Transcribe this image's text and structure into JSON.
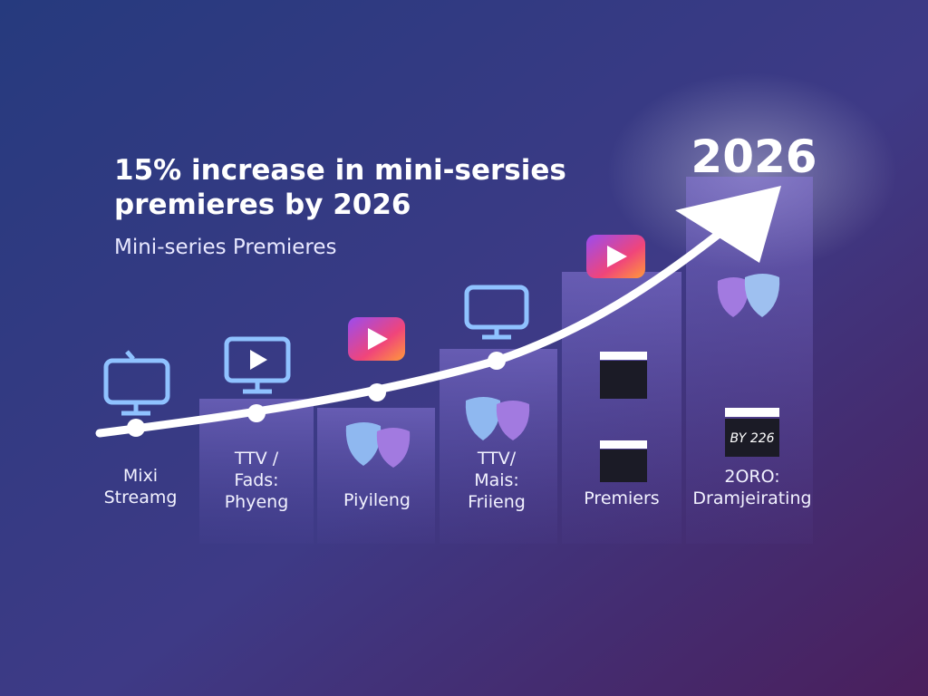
{
  "header": {
    "title_lines": [
      "15% increase in mini-sersies",
      "premieres by 2026"
    ],
    "subtitle": "Mini-series Premieres",
    "highlight": "2026"
  },
  "columns": [
    {
      "label_lines": [
        "Mixi",
        "Streamg"
      ]
    },
    {
      "label_lines": [
        "TTV /",
        "Fads:",
        "Phyeng"
      ]
    },
    {
      "label_lines": [
        "Piyileng"
      ]
    },
    {
      "label_lines": [
        "TTV/",
        "Mais:",
        "Friieng"
      ]
    },
    {
      "label_lines": [
        "Premiers"
      ]
    },
    {
      "label_lines": [
        "2ORO:",
        "Dramjeirating"
      ]
    }
  ],
  "clapper_text": "BY 226"
}
